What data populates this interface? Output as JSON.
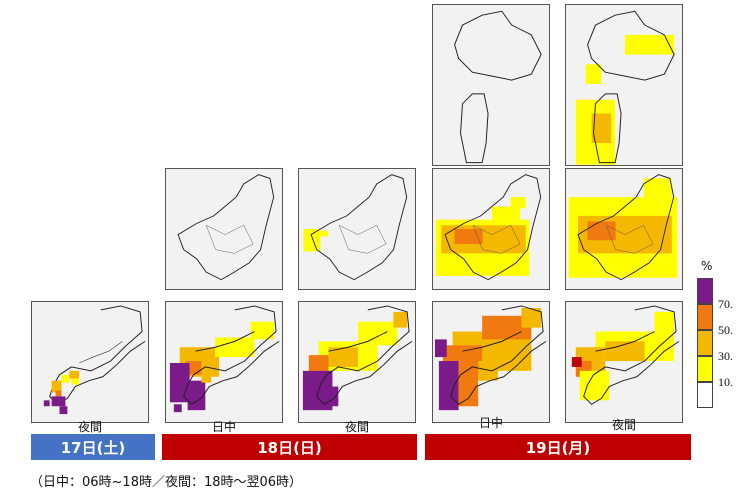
{
  "days": [
    {
      "label": "17日(土)",
      "color": "#4472c4"
    },
    {
      "label": "18日(日)",
      "color": "#c00000"
    },
    {
      "label": "19日(月)",
      "color": "#c00000"
    }
  ],
  "panel_labels": {
    "p17_night": "夜間",
    "p18_day": "日中",
    "p18_night": "夜間",
    "p19_day": "日中",
    "p19_night": "夜間"
  },
  "legend": {
    "unit": "%",
    "levels": [
      {
        "label": "70.",
        "color": "#7b1b8a"
      },
      {
        "label": "50.",
        "color": "#f07a10"
      },
      {
        "label": "30.",
        "color": "#f5b800"
      },
      {
        "label": "10.",
        "color": "#ffff00"
      },
      {
        "label": "",
        "color": "#ffffff"
      }
    ]
  },
  "footnote": "（日中：06時~18時／夜間：18時～翌06時）"
}
